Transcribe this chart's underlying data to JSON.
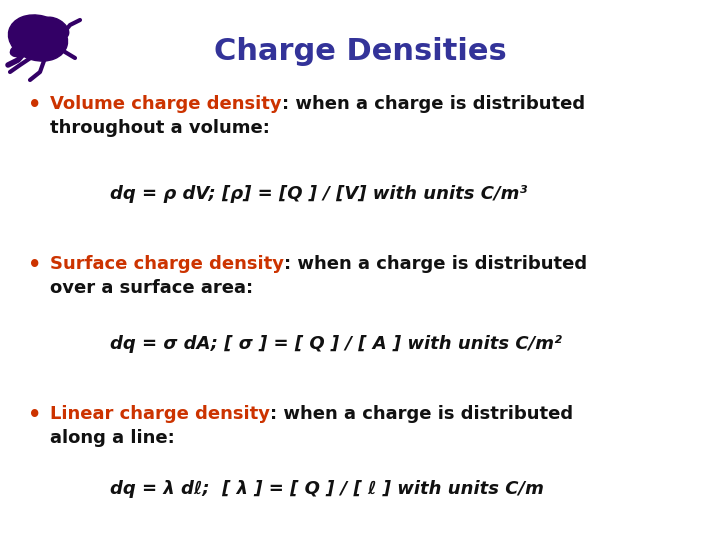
{
  "title": "Charge Densities",
  "title_color": "#333399",
  "title_fontsize": 22,
  "background_color": "#FFFFFF",
  "bullet_color": "#CC3300",
  "text_color": "#111111",
  "bullet_fontsize": 13,
  "eq_fontsize": 13,
  "bullets": [
    {
      "highlight": "Volume charge density",
      "rest_line1": ": when a charge is distributed",
      "rest_line2": "throughout a volume:",
      "equation": "dq = ρ dV; [ρ] = [Q ] / [V] with units C/m³"
    },
    {
      "highlight": "Surface charge density",
      "rest_line1": ": when a charge is distributed",
      "rest_line2": "over a surface area:",
      "equation": "dq = σ dA; [ σ ] = [ Q ] / [ A ] with units C/m²"
    },
    {
      "highlight": "Linear charge density",
      "rest_line1": ": when a charge is distributed",
      "rest_line2": "along a line:",
      "equation": "dq = λ dℓ;  [ λ ] = [ Q ] / [ ℓ ] with units C/m"
    }
  ]
}
